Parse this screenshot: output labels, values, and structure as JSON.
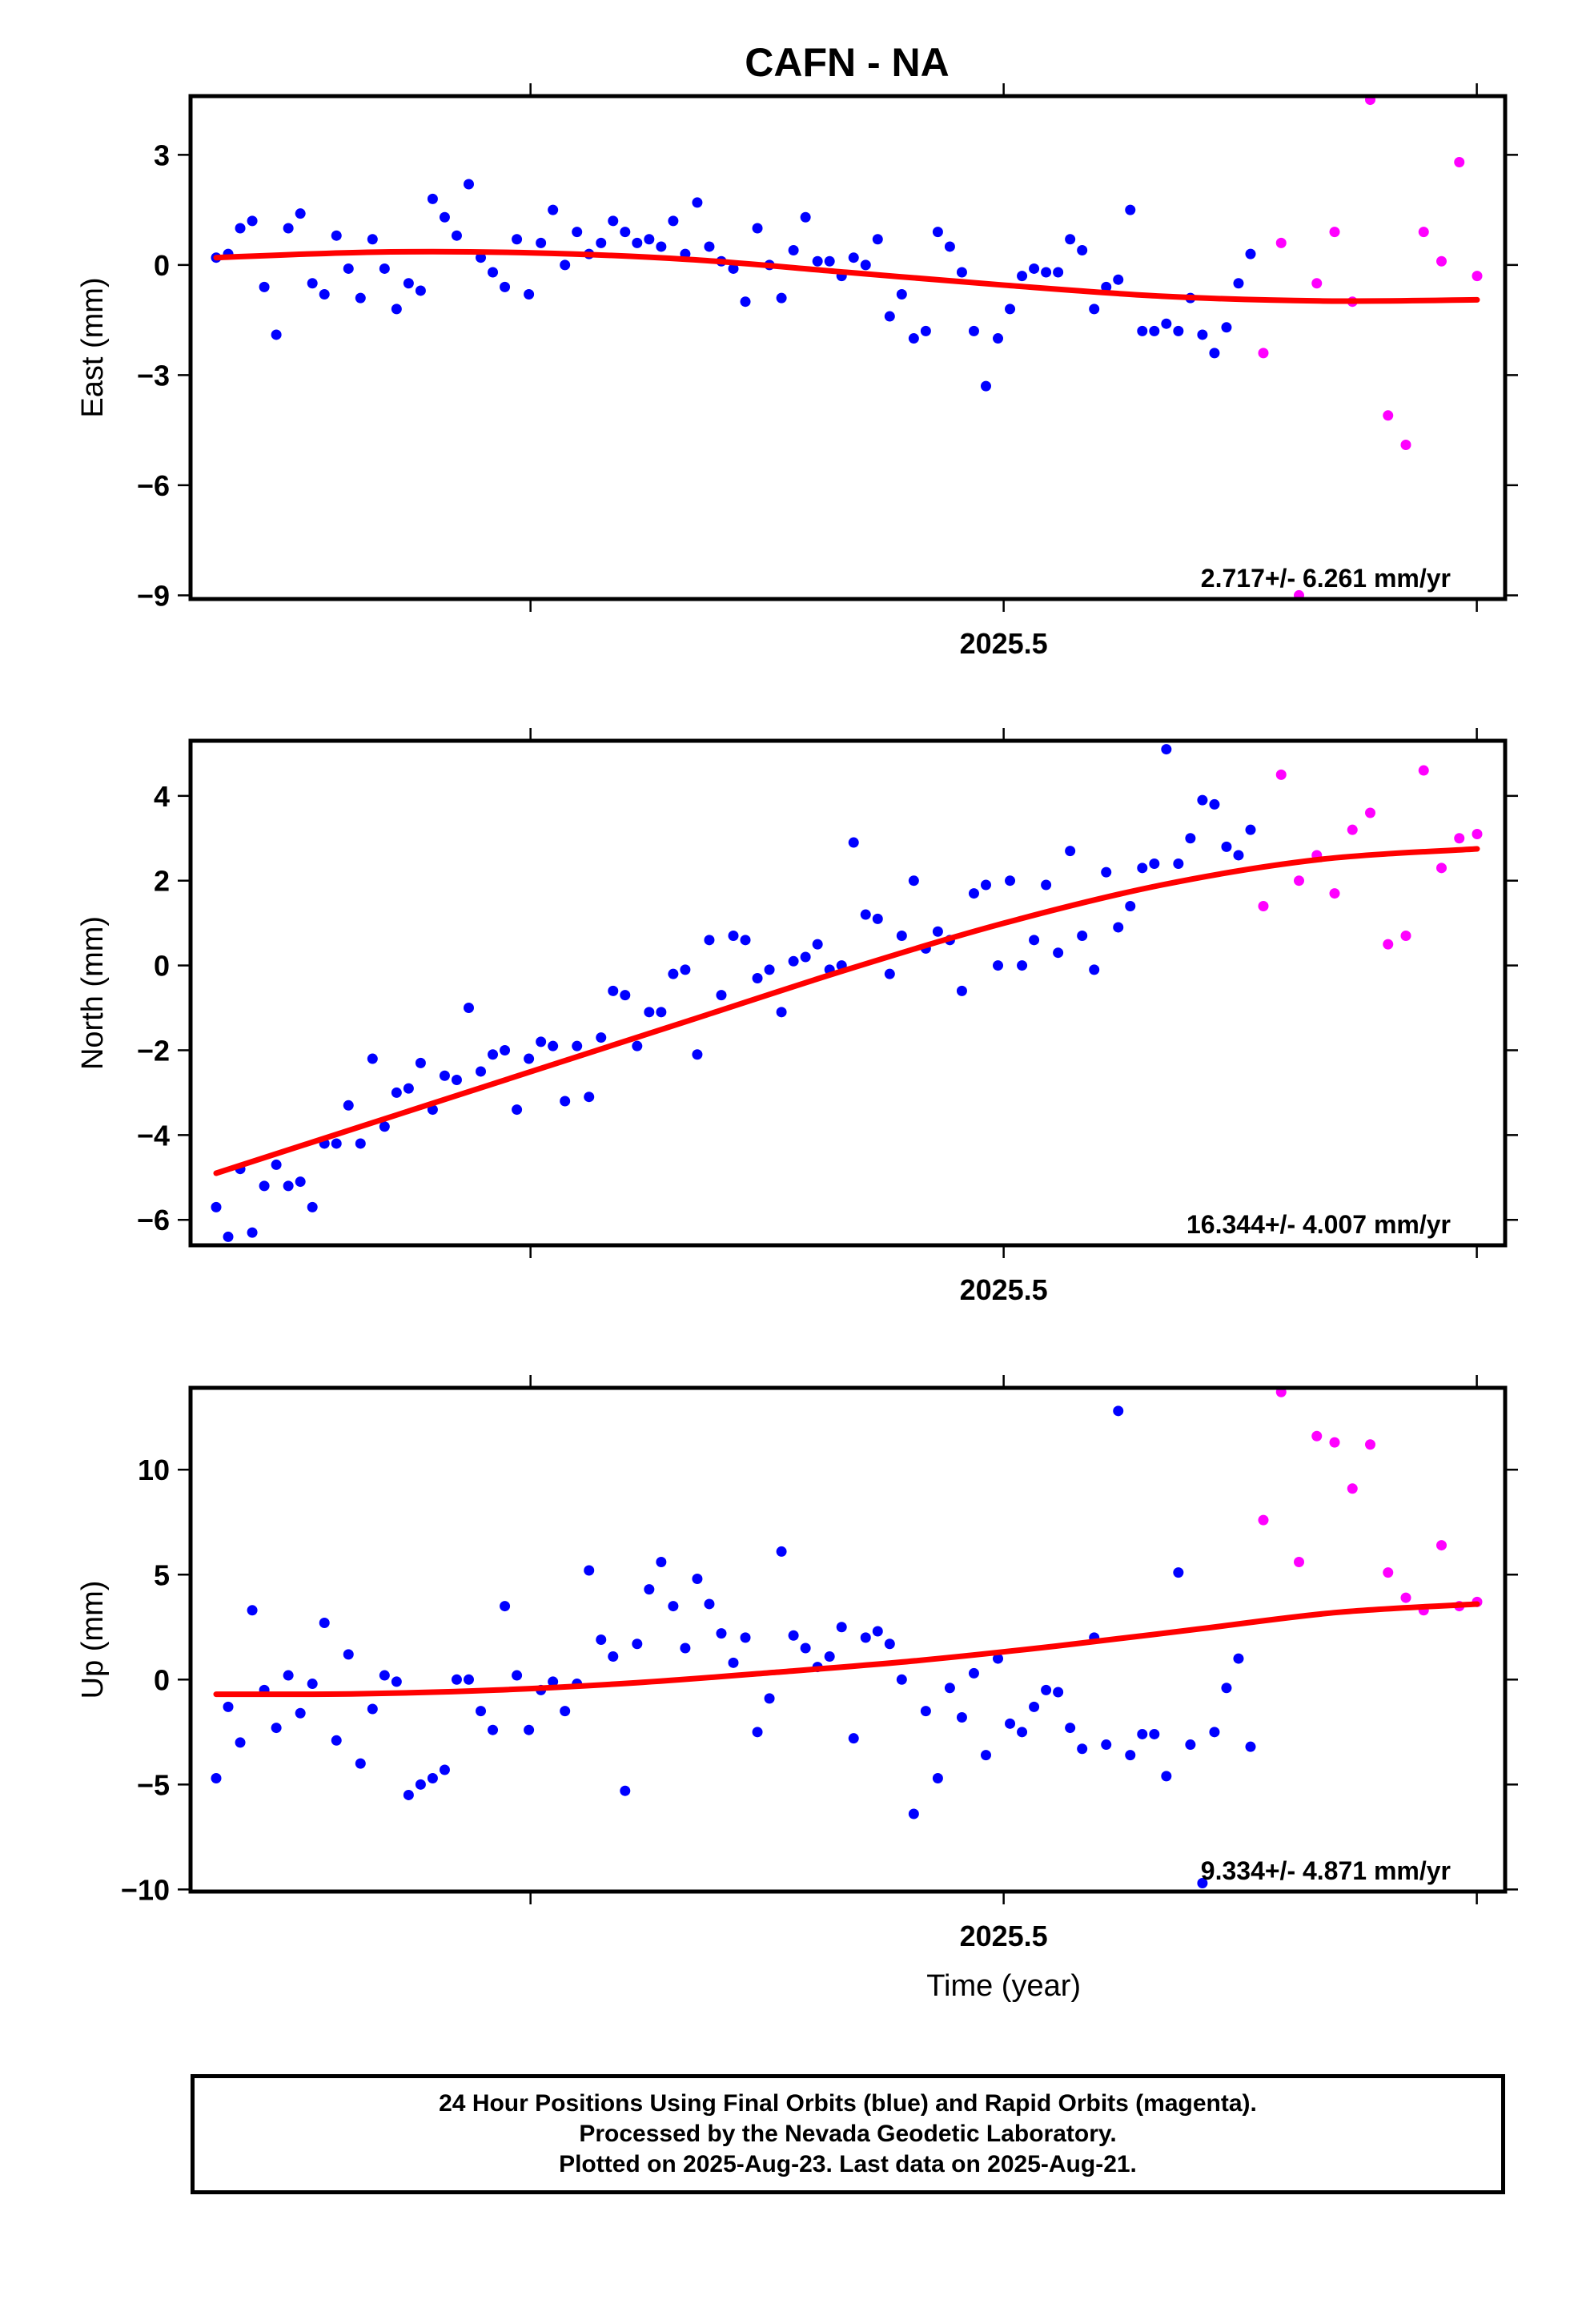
{
  "footer": {
    "line1": "24 Hour Positions Using Final Orbits (blue) and Rapid Orbits (magenta).",
    "line2": "Processed by the Nevada Geodetic Laboratory.",
    "line3": "Plotted on 2025-Aug-23. Last data on 2025-Aug-21."
  },
  "colors": {
    "final": "#0000ff",
    "rapid": "#ff00ff",
    "fit": "#ff0000"
  },
  "chart_data": {
    "type": "scatter",
    "title": "CAFN - NA",
    "xlabel": "Time (year)",
    "xlim": [
      2025.213,
      2025.677
    ],
    "x_ticks_major": [
      {
        "value": 2025.5,
        "label": "2025.5"
      }
    ],
    "x_ticks_minor": [
      2025.333,
      2025.5,
      2025.667
    ],
    "panels": [
      {
        "name": "east",
        "ylabel": "East (mm)",
        "ylim": [
          -9.1,
          4.6
        ],
        "y_ticks": [
          {
            "value": 3,
            "label": "3"
          },
          {
            "value": 0,
            "label": "0"
          },
          {
            "value": -3,
            "label": "−3"
          },
          {
            "value": -6,
            "label": "−6"
          },
          {
            "value": -9,
            "label": "−9"
          }
        ],
        "rate": "2.717+/- 6.261 mm/yr",
        "final": [
          0.2,
          0.3,
          1.0,
          1.2,
          -0.6,
          -1.9,
          1.0,
          1.4,
          -0.5,
          -0.8,
          0.8,
          -0.1,
          -0.9,
          0.7,
          -0.1,
          -1.2,
          -0.5,
          -0.7,
          1.8,
          1.3,
          0.8,
          2.2,
          0.2,
          -0.2,
          -0.6,
          0.7,
          -0.8,
          0.6,
          1.5,
          0.0,
          0.9,
          0.3,
          0.6,
          1.2,
          0.9,
          0.6,
          0.7,
          0.5,
          1.2,
          0.3,
          1.7,
          0.5,
          0.1,
          -0.1,
          -1.0,
          1.0,
          0.0,
          -0.9,
          0.4,
          1.3,
          0.1,
          0.1,
          -0.3,
          0.2,
          0.0,
          0.7,
          -1.4,
          -0.8,
          -2.0,
          -1.8,
          0.9,
          0.5,
          -0.2,
          -1.8,
          -3.3,
          -2.0,
          -1.2,
          -0.3,
          -0.1,
          -0.2,
          -0.2,
          0.7,
          0.4,
          -1.2,
          -0.6,
          -0.4,
          1.5,
          -1.8,
          -1.8,
          -1.6,
          -1.8,
          -0.9,
          -1.9,
          -2.4,
          -1.7,
          -0.5,
          0.3
        ],
        "rapid": [
          -2.4,
          0.6,
          -9.0,
          -0.5,
          0.9,
          -1.0,
          4.5,
          -4.1,
          -4.9,
          0.9,
          0.1,
          2.8,
          -0.3
        ],
        "fit": [
          0.2,
          0.35,
          0.33,
          0.15,
          -0.2,
          -0.55,
          -0.85,
          -0.98,
          -0.95
        ]
      },
      {
        "name": "north",
        "ylabel": "North (mm)",
        "ylim": [
          -6.6,
          5.3
        ],
        "y_ticks": [
          {
            "value": 4,
            "label": "4"
          },
          {
            "value": 2,
            "label": "2"
          },
          {
            "value": 0,
            "label": "0"
          },
          {
            "value": -2,
            "label": "−2"
          },
          {
            "value": -4,
            "label": "−4"
          },
          {
            "value": -6,
            "label": "−6"
          }
        ],
        "rate": "16.344+/- 4.007 mm/yr",
        "final": [
          -5.7,
          -6.4,
          -4.8,
          -6.3,
          -5.2,
          -4.7,
          -5.2,
          -5.1,
          -5.7,
          -4.2,
          -4.2,
          -3.3,
          -4.2,
          -2.2,
          -3.8,
          -3.0,
          -2.9,
          -2.3,
          -3.4,
          -2.6,
          -2.7,
          -1.0,
          -2.5,
          -2.1,
          -2.0,
          -3.4,
          -2.2,
          -1.8,
          -1.9,
          -3.2,
          -1.9,
          -3.1,
          -1.7,
          -0.6,
          -0.7,
          -1.9,
          -1.1,
          -1.1,
          -0.2,
          -0.1,
          -2.1,
          0.6,
          -0.7,
          0.7,
          0.6,
          -0.3,
          -0.1,
          -1.1,
          0.1,
          0.2,
          0.5,
          -0.1,
          0.0,
          2.9,
          1.2,
          1.1,
          -0.2,
          0.7,
          2.0,
          0.4,
          0.8,
          0.6,
          -0.6,
          1.7,
          1.9,
          0.0,
          2.0,
          0.0,
          0.6,
          1.9,
          0.3,
          2.7,
          0.7,
          -0.1,
          2.2,
          0.9,
          1.4,
          2.3,
          2.4,
          5.1,
          2.4,
          3.0,
          3.9,
          3.8,
          2.8,
          2.6,
          3.2
        ],
        "rapid": [
          1.4,
          4.5,
          2.0,
          2.6,
          1.7,
          3.2,
          3.6,
          0.5,
          0.7,
          4.6,
          2.3,
          3.0,
          3.1
        ],
        "fit": [
          -4.9,
          -3.7,
          -2.5,
          -1.3,
          -0.1,
          1.0,
          1.9,
          2.5,
          2.75
        ]
      },
      {
        "name": "up",
        "ylabel": "Up (mm)",
        "ylim": [
          -10.1,
          13.9
        ],
        "y_ticks": [
          {
            "value": 10,
            "label": "10"
          },
          {
            "value": 5,
            "label": "5"
          },
          {
            "value": 0,
            "label": "0"
          },
          {
            "value": -5,
            "label": "−5"
          },
          {
            "value": -10,
            "label": "−10"
          }
        ],
        "rate": "9.334+/- 4.871 mm/yr",
        "final": [
          -4.7,
          -1.3,
          -3.0,
          3.3,
          -0.5,
          -2.3,
          0.2,
          -1.6,
          -0.2,
          2.7,
          -2.9,
          1.2,
          -4.0,
          -1.4,
          0.2,
          -0.1,
          -5.5,
          -5.0,
          -4.7,
          -4.3,
          0.0,
          0.0,
          -1.5,
          -2.4,
          3.5,
          0.2,
          -2.4,
          -0.5,
          -0.1,
          -1.5,
          -0.2,
          5.2,
          1.9,
          1.1,
          -5.3,
          1.7,
          4.3,
          5.6,
          3.5,
          1.5,
          4.8,
          3.6,
          2.2,
          0.8,
          2.0,
          -2.5,
          -0.9,
          6.1,
          2.1,
          1.5,
          0.6,
          1.1,
          2.5,
          -2.8,
          2.0,
          2.3,
          1.7,
          0.0,
          -6.4,
          -1.5,
          -4.7,
          -0.4,
          -1.8,
          0.3,
          -3.6,
          1.0,
          -2.1,
          -2.5,
          -1.3,
          -0.5,
          -0.6,
          -2.3,
          -3.3,
          2.0,
          -3.1,
          12.8,
          -3.6,
          -2.6,
          -2.6,
          -4.6,
          5.1,
          -3.1,
          -9.7,
          -2.5,
          -0.4,
          1.0,
          -3.2
        ],
        "rapid": [
          7.6,
          13.7,
          5.6,
          11.6,
          11.3,
          9.1,
          11.2,
          5.1,
          3.9,
          3.3,
          6.4,
          3.5,
          3.7
        ],
        "fit": [
          -0.7,
          -0.68,
          -0.5,
          -0.15,
          0.35,
          0.9,
          1.6,
          2.4,
          3.2,
          3.6
        ]
      }
    ]
  }
}
